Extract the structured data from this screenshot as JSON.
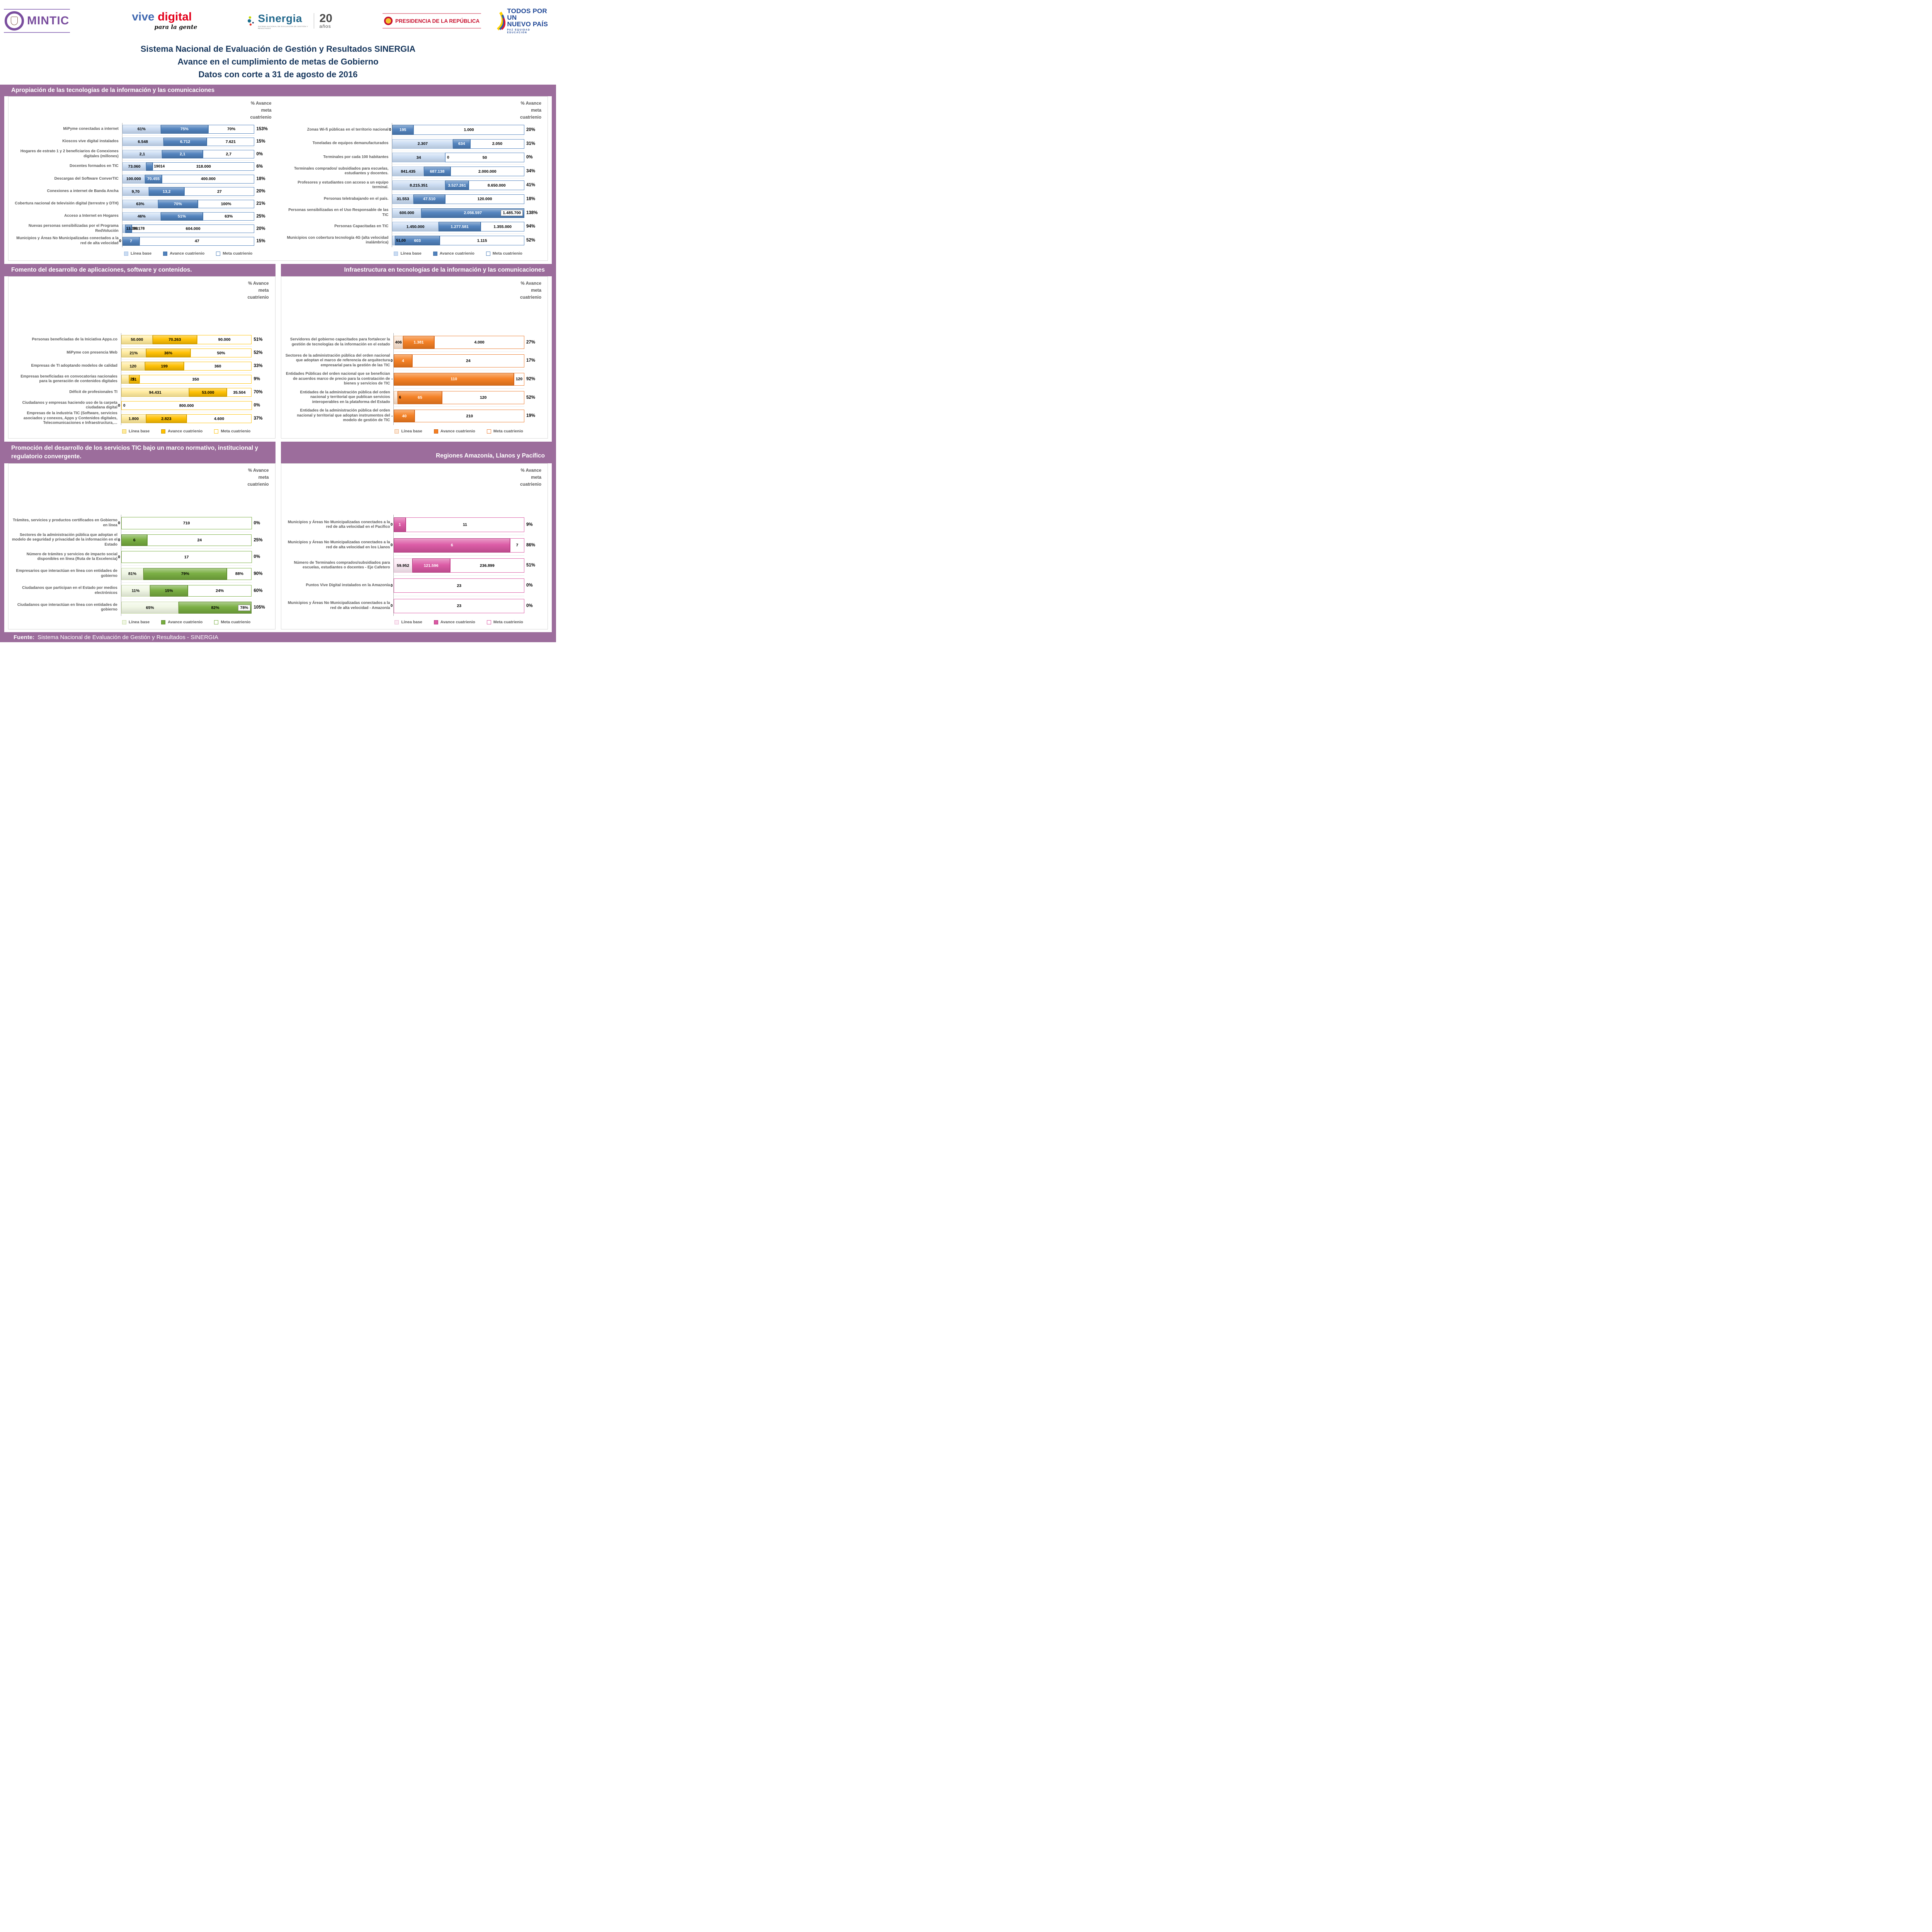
{
  "header": {
    "logos": {
      "mintic": {
        "name": "MINTIC"
      },
      "vive": {
        "w1": "vive",
        "w2": "digital",
        "tag": "para la gente"
      },
      "sinergia": {
        "name": "Sinergia",
        "num": "20",
        "unit": "años",
        "caption": "SISTEMA NACIONAL DE EVALUACIÓN DE GESTIÓN Y RESULTADOS"
      },
      "presidencia": {
        "name": "PRESIDENCIA DE LA REPÚBLICA"
      },
      "nuevopais": {
        "l1": "TODOS POR UN",
        "l2": "NUEVO PAÍS",
        "tag": "PAZ   EQUIDAD   EDUCACIÓN"
      }
    },
    "title_lines": [
      "Sistema Nacional de Evaluación de Gestión y Resultados SINERGIA",
      "Avance en el cumplimiento de metas de Gobierno",
      "Datos con corte a 31 de agosto de 2016"
    ]
  },
  "sections": {
    "s1": {
      "title": "Apropiación de las tecnologías de la información y las comunicaciones"
    },
    "s2l": {
      "title": "Fomento del desarrollo de aplicaciones, software y contenidos."
    },
    "s2r": {
      "title": "Infraestructura en tecnologías de la información y las comunicaciones"
    },
    "s3l": {
      "title": "Promoción del desarrollo de los servicios TIC bajo un marco normativo, institucional y regulatorio convergente."
    },
    "s3r": {
      "title": "Regiones Amazonía, Llanos y Pacífico"
    }
  },
  "legend": [
    "Línea base",
    "Avance cuatrienio",
    "Meta cuatrienio"
  ],
  "value_axis_header": [
    "% Avance",
    "meta",
    "cuatrienio"
  ],
  "footer": {
    "label": "Fuente:",
    "text": " Sistema Nacional de Evaluación de Gestión y Resultados - SINERGIA"
  },
  "chart_data": [
    {
      "type": "bar",
      "orientation": "horizontal",
      "stacked": true,
      "title": "Apropiación de las tecnologías de la información y las comunicaciones",
      "position": "left",
      "series_names": [
        "Línea base",
        "Avance cuatrienio",
        "Meta cuatrienio"
      ],
      "colors": {
        "base": "#C9DBF2",
        "bborder": "#9FBCE0",
        "avance": "#4F81BD",
        "aborder": "#3A689B",
        "avtext": "#FFFFFF",
        "mborder": "#4F81BD"
      },
      "rows": [
        {
          "label": "MiPyme conectadas a internet",
          "values": [
            "61%",
            "75%",
            "70%"
          ],
          "widths": [
            29,
            36,
            35
          ],
          "pct": "153%"
        },
        {
          "label": "Kioscos vive digital instalados",
          "values": [
            "6.548",
            "6.712",
            "7.621"
          ],
          "widths": [
            31,
            33,
            36
          ],
          "pct": "15%"
        },
        {
          "label": "Hogares de estrato 1 y 2 beneficiarios de Conexiones digitales (millones)",
          "values": [
            "2,1",
            "2,1",
            "2,7"
          ],
          "widths": [
            30,
            31,
            39
          ],
          "pct": "0%"
        },
        {
          "label": "Docentes formados en TIC",
          "values": [
            "73.060",
            "19014",
            "318.000"
          ],
          "widths": [
            18,
            5,
            77
          ],
          "pct": "6%"
        },
        {
          "label": "Descargas del Software ConverTIC",
          "values": [
            "100.000",
            "70.455",
            "400.000"
          ],
          "widths": [
            17,
            13,
            70
          ],
          "pct": "18%"
        },
        {
          "label": "Conexiones a internet de Banda Ancha",
          "values": [
            "9,70",
            "13,2",
            "27"
          ],
          "widths": [
            20,
            27,
            53
          ],
          "pct": "20%"
        },
        {
          "label": "Cobertura nacional de televisión digital (terrestre y DTH)",
          "values": [
            "63%",
            "70%",
            "100%"
          ],
          "widths": [
            27,
            30,
            43
          ],
          "pct": "21%"
        },
        {
          "label": "Acceso a Internet en Hogares",
          "values": [
            "46%",
            "51%",
            "63%"
          ],
          "widths": [
            29,
            32,
            39
          ],
          "pct": "25%"
        },
        {
          "label": "Nuevas personas sensibilizadas por el Programa RedVolución",
          "values": [
            "13.390",
            "36.178",
            "604.000"
          ],
          "widths": [
            2,
            5,
            93
          ],
          "pct": "20%"
        },
        {
          "label": "Municipios y Áreas No Municipalizadas conectados a la red de alta velocidad",
          "values": [
            "0",
            "7",
            "47"
          ],
          "widths": [
            0,
            13,
            87
          ],
          "pct": "15%"
        }
      ]
    },
    {
      "type": "bar",
      "orientation": "horizontal",
      "stacked": true,
      "title": "Apropiación de las tecnologías de la información y las comunicaciones",
      "position": "right",
      "series_names": [
        "Línea base",
        "Avance cuatrienio",
        "Meta cuatrienio"
      ],
      "colors": {
        "base": "#C9DBF2",
        "bborder": "#9FBCE0",
        "avance": "#4F81BD",
        "aborder": "#3A689B",
        "avtext": "#FFFFFF",
        "mborder": "#4F81BD"
      },
      "rows": [
        {
          "label": "Zonas Wi-fi públicas en el territorio nacional",
          "values": [
            "0",
            "195",
            "1.000"
          ],
          "widths": [
            0,
            16,
            84
          ],
          "pct": "20%"
        },
        {
          "label": "Toneladas de equipos demanufacturados",
          "values": [
            "2.307",
            "634",
            "2.050"
          ],
          "widths": [
            46,
            13,
            41
          ],
          "pct": "31%"
        },
        {
          "label": "Terminales por cada 100 habitantes",
          "values": [
            "34",
            "0",
            "50"
          ],
          "widths": [
            40,
            0,
            60
          ],
          "pct": "0%"
        },
        {
          "label": "Terminales comprados/ subsidiados para escuelas, estudiantes y docentes.",
          "values": [
            "841.435",
            "687.138",
            "2.000.000"
          ],
          "widths": [
            24,
            20,
            56
          ],
          "pct": "34%"
        },
        {
          "label": "Profesores y estudiantes con acceso a un equipo terminal.",
          "values": [
            "8.215.351",
            "3.527.261",
            "8.650.000"
          ],
          "widths": [
            40,
            18,
            42
          ],
          "pct": "41%"
        },
        {
          "label": "Personas teletrabajando en el país.",
          "values": [
            "31.553",
            "47.510",
            "120.000"
          ],
          "widths": [
            16,
            24,
            60
          ],
          "pct": "18%"
        },
        {
          "label": "Personas sensibilizadas en el Uso Responsable de las TIC",
          "values": [
            "600.000",
            "2.056.597",
            "1.485.700"
          ],
          "widths": [
            22,
            78,
            0
          ],
          "pct": "138%",
          "metaBoxed": true
        },
        {
          "label": "Personas Capacitadas en TIC",
          "values": [
            "1.450.000",
            "1.277.581",
            "1.355.000"
          ],
          "widths": [
            35,
            32,
            33
          ],
          "pct": "94%"
        },
        {
          "label": "Municipios con cobertura tecnología 4G (alta velocidad inalámbrica)",
          "values": [
            "51,00",
            "603",
            "1.115"
          ],
          "widths": [
            2,
            34,
            64
          ],
          "pct": "52%"
        }
      ]
    },
    {
      "type": "bar",
      "orientation": "horizontal",
      "stacked": true,
      "title": "Fomento del desarrollo de aplicaciones, software y contenidos.",
      "position": "left",
      "series_names": [
        "Línea base",
        "Avance cuatrienio",
        "Meta cuatrienio"
      ],
      "colors": {
        "base": "#FFEA9B",
        "bborder": "#E0C253",
        "avance": "#FFC000",
        "aborder": "#BF9000",
        "avtext": "#000000",
        "mborder": "#FFC000"
      },
      "rows": [
        {
          "label": "Personas beneficiadas de la Iniciativa Apps.co",
          "values": [
            "50.000",
            "70.263",
            "90.000"
          ],
          "widths": [
            24,
            34,
            42
          ],
          "pct": "51%"
        },
        {
          "label": "MiPyme con presencia Web",
          "values": [
            "21%",
            "36%",
            "50%"
          ],
          "widths": [
            19,
            34,
            47
          ],
          "pct": "52%"
        },
        {
          "label": "Empresas de TI adoptando modelos de calidad",
          "values": [
            "120",
            "199",
            "360"
          ],
          "widths": [
            18,
            30,
            52
          ],
          "pct": "33%"
        },
        {
          "label": "Empresas beneficiadas en convocatorias nacionales para la generación de contenidos digitales",
          "values": [
            "25",
            "31",
            "350"
          ],
          "widths": [
            6,
            8,
            86
          ],
          "pct": "9%"
        },
        {
          "label": "Déficit de profesionales TI",
          "values": [
            "94.431",
            "53.000",
            "35.504"
          ],
          "widths": [
            52,
            29,
            19
          ],
          "pct": "70%"
        },
        {
          "label": "Ciudadanos y empresas haciendo uso de la carpeta ciudadana digital",
          "values": [
            "0",
            "0",
            "800.000"
          ],
          "widths": [
            0,
            0,
            100
          ],
          "pct": "0%"
        },
        {
          "label": "Empresas de la industria TIC (Software, servicios asociados y conexos, Apps y Contenidos digitales, Telecomunicaciones e Infraestructura,…",
          "values": [
            "1.800",
            "2.823",
            "4.600"
          ],
          "widths": [
            19,
            31,
            50
          ],
          "pct": "37%"
        }
      ]
    },
    {
      "type": "bar",
      "orientation": "horizontal",
      "stacked": true,
      "title": "Infraestructura en tecnologías de la información y las comunicaciones",
      "position": "right",
      "series_names": [
        "Línea base",
        "Avance cuatrienio",
        "Meta cuatrienio"
      ],
      "colors": {
        "base": "#FBE5D3",
        "bborder": "#EDB17F",
        "avance": "#F57E20",
        "aborder": "#C55A11",
        "avtext": "#FFFFFF",
        "mborder": "#ED7D31"
      },
      "rows": [
        {
          "label": "Servidores del gobierno capacitados para fortalecer la gestión de tecnologías de la información en el estado",
          "values": [
            "406",
            "1.381",
            "4.000"
          ],
          "widths": [
            7,
            24,
            69
          ],
          "pct": "27%"
        },
        {
          "label": "Sectores de la administración pública del orden nacional que adoptan el marco de referencia de arquitectura empresarial para la gestión de las TIC",
          "values": [
            "0",
            "4",
            "24"
          ],
          "widths": [
            0,
            14,
            86
          ],
          "pct": "17%"
        },
        {
          "label": "Entidades Públicas del orden nacional que se benefician de acuerdos marco de precio para la contratación de bienes y servicios de TIC",
          "values": [
            "-",
            "110",
            "120"
          ],
          "widths": [
            0,
            92,
            8
          ],
          "pct": "92%"
        },
        {
          "label": "Entidades de la administración pública del orden nacional y territorial que publican servicios interoperables en la plataforma del Estado",
          "values": [
            "6",
            "65",
            "120"
          ],
          "widths": [
            3,
            34,
            63
          ],
          "pct": "52%"
        },
        {
          "label": "Entidades de la administración pública del orden nacional y territorial que adoptan instrumentos del modelo de gestión de TIC",
          "values": [
            "-",
            "40",
            "210"
          ],
          "widths": [
            0,
            16,
            84
          ],
          "pct": "19%"
        }
      ]
    },
    {
      "type": "bar",
      "orientation": "horizontal",
      "stacked": true,
      "title": "Promoción del desarrollo de los servicios TIC bajo un marco normativo, institucional y regulatorio convergente.",
      "position": "left",
      "series_names": [
        "Línea base",
        "Avance cuatrienio",
        "Meta cuatrienio"
      ],
      "colors": {
        "base": "#EFF6E3",
        "bborder": "#C6DBA4",
        "avance": "#77AD3F",
        "aborder": "#567F2B",
        "avtext": "#000000",
        "mborder": "#77AD3F"
      },
      "rows": [
        {
          "label": "Trámites, servicios y productos certificados en Gobierno en línea",
          "values": [
            "0",
            null,
            "710"
          ],
          "widths": [
            0,
            0,
            100
          ],
          "pct": "0%"
        },
        {
          "label": "Sectores de la administración pública que adoptan el modelo de seguridad y privacidad de la información en el Estado",
          "values": [
            "0",
            "6",
            "24"
          ],
          "widths": [
            0,
            20,
            80
          ],
          "pct": "25%"
        },
        {
          "label": "Número de trámites y servicios de impacto social disponibles en línea (Ruta de la Excelencia)",
          "values": [
            "0",
            null,
            "17"
          ],
          "widths": [
            0,
            0,
            100
          ],
          "pct": "0%"
        },
        {
          "label": "Empresarios que interactúan en línea con entidades de gobierno",
          "values": [
            "81%",
            "79%",
            "88%"
          ],
          "widths": [
            17,
            64,
            19
          ],
          "pct": "90%"
        },
        {
          "label": "Ciudadanos que participan en el Estado por medios electrónicos",
          "values": [
            "11%",
            "15%",
            "24%"
          ],
          "widths": [
            22,
            29,
            49
          ],
          "pct": "60%"
        },
        {
          "label": "Ciudadanos que interactúan en línea con entidades de gobierno",
          "values": [
            "65%",
            "82%",
            "78%"
          ],
          "widths": [
            44,
            56,
            0
          ],
          "pct": "105%",
          "metaBoxed": true
        }
      ]
    },
    {
      "type": "bar",
      "orientation": "horizontal",
      "stacked": true,
      "title": "Regiones Amazonía, Llanos y Pacífico",
      "position": "right",
      "series_names": [
        "Línea base",
        "Avance cuatrienio",
        "Meta cuatrienio"
      ],
      "colors": {
        "base": "#FBE9F3",
        "bborder": "#E9B6D4",
        "avance": "#DB58A4",
        "aborder": "#AD3378",
        "avtext": "#FFFFFF",
        "mborder": "#DB58A4"
      },
      "rows": [
        {
          "label": "Municipios y Áreas No Municipalizadas conectados a la red de alta velocidad en el Pacífico",
          "values": [
            "0",
            "1",
            "11"
          ],
          "widths": [
            0,
            9,
            91
          ],
          "pct": "9%"
        },
        {
          "label": "Municipios y Áreas No Municipalizadas conectados a la red de alta velocidad en los Llanos",
          "values": [
            "0",
            "6",
            "7"
          ],
          "widths": [
            0,
            89,
            11
          ],
          "pct": "86%"
        },
        {
          "label": "Número de Terminales comprados/subsidiados para escuelas, estudiantes o docentes - Eje Cafetero",
          "values": [
            "59.952",
            "121.596",
            "236.899"
          ],
          "widths": [
            14,
            29,
            57
          ],
          "pct": "51%"
        },
        {
          "label": "Puntos Vive Digital instalados en la Amazonía",
          "values": [
            "0",
            null,
            "23"
          ],
          "widths": [
            0,
            0,
            100
          ],
          "pct": "0%"
        },
        {
          "label": "Municipios y Áreas No Municipalizadas conectados a la red de alta velocidad - Amazonía",
          "values": [
            "0",
            null,
            "23"
          ],
          "widths": [
            0,
            0,
            100
          ],
          "pct": "0%"
        }
      ]
    }
  ]
}
